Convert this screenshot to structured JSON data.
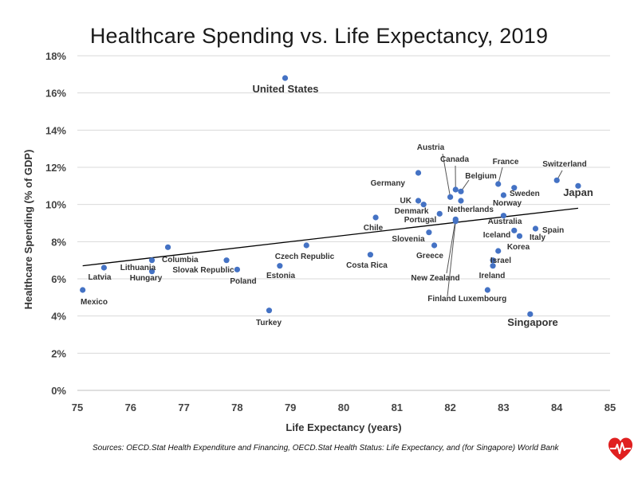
{
  "colors": {
    "point": "#4472c4",
    "trend": "#000000",
    "grid": "#d9d9d9",
    "logo": "#e02020"
  },
  "icons": {
    "logo": "heart-pulse-icon"
  },
  "source_note": "Sources: OECD.Stat Health Expenditure and Financing, OECD.Stat Health Status: Life Expectancy, and (for Singapore) World Bank",
  "chart_data": {
    "type": "scatter",
    "title": "Healthcare Spending vs. Life Expectancy, 2019",
    "xlabel": "Life Expectancy (years)",
    "ylabel": "Healthcare Spending (% of GDP)",
    "xlim": [
      75,
      85
    ],
    "ylim": [
      0,
      18
    ],
    "x_ticks": [
      "75",
      "76",
      "77",
      "78",
      "79",
      "80",
      "81",
      "82",
      "83",
      "84",
      "85"
    ],
    "y_ticks": [
      "0%",
      "2%",
      "4%",
      "6%",
      "8%",
      "10%",
      "12%",
      "14%",
      "16%",
      "18%"
    ],
    "grid": "horizontal",
    "trendline": {
      "x": [
        75.1,
        84.4
      ],
      "y": [
        6.7,
        9.8
      ]
    },
    "points": [
      {
        "label": "United States",
        "x": 78.9,
        "y": 16.8,
        "emphasis": true
      },
      {
        "label": "Mexico",
        "x": 75.1,
        "y": 5.4
      },
      {
        "label": "Latvia",
        "x": 75.5,
        "y": 6.6
      },
      {
        "label": "Lithuania",
        "x": 76.4,
        "y": 7.0
      },
      {
        "label": "Hungary",
        "x": 76.4,
        "y": 6.4
      },
      {
        "label": "Columbia",
        "x": 76.7,
        "y": 7.7
      },
      {
        "label": "Slovak Republic",
        "x": 77.8,
        "y": 7.0
      },
      {
        "label": "Poland",
        "x": 78.0,
        "y": 6.5
      },
      {
        "label": "Turkey",
        "x": 78.6,
        "y": 4.3
      },
      {
        "label": "Estonia",
        "x": 78.8,
        "y": 6.7
      },
      {
        "label": "Czech Republic",
        "x": 79.3,
        "y": 7.8
      },
      {
        "label": "Costa Rica",
        "x": 80.5,
        "y": 7.3
      },
      {
        "label": "Chile",
        "x": 80.6,
        "y": 9.3
      },
      {
        "label": "Germany",
        "x": 81.4,
        "y": 11.7
      },
      {
        "label": "UK",
        "x": 81.4,
        "y": 10.2
      },
      {
        "label": "Denmark",
        "x": 81.5,
        "y": 10.0
      },
      {
        "label": "Portugal",
        "x": 81.8,
        "y": 9.5
      },
      {
        "label": "Slovenia",
        "x": 81.6,
        "y": 8.5
      },
      {
        "label": "Greece",
        "x": 81.7,
        "y": 7.8
      },
      {
        "label": "Austria",
        "x": 82.0,
        "y": 10.4
      },
      {
        "label": "Canada",
        "x": 82.1,
        "y": 10.8
      },
      {
        "label": "Belgium",
        "x": 82.2,
        "y": 10.7
      },
      {
        "label": "Netherlands",
        "x": 82.2,
        "y": 10.2
      },
      {
        "label": "New Zealand",
        "x": 82.1,
        "y": 9.2
      },
      {
        "label": "Finland",
        "x": 82.1,
        "y": 9.1
      },
      {
        "label": "France",
        "x": 82.9,
        "y": 11.1
      },
      {
        "label": "Sweden",
        "x": 83.2,
        "y": 10.9
      },
      {
        "label": "Norway",
        "x": 83.0,
        "y": 10.5
      },
      {
        "label": "Australia",
        "x": 83.0,
        "y": 9.4
      },
      {
        "label": "Iceland",
        "x": 83.2,
        "y": 8.6
      },
      {
        "label": "Italy",
        "x": 83.3,
        "y": 8.3
      },
      {
        "label": "Korea",
        "x": 82.9,
        "y": 7.5
      },
      {
        "label": "Israel",
        "x": 82.8,
        "y": 7.0
      },
      {
        "label": "Ireland",
        "x": 82.8,
        "y": 6.7
      },
      {
        "label": "Luxembourg",
        "x": 82.7,
        "y": 5.4
      },
      {
        "label": "Spain",
        "x": 83.6,
        "y": 8.7
      },
      {
        "label": "Switzerland",
        "x": 84.0,
        "y": 11.3
      },
      {
        "label": "Japan",
        "x": 84.4,
        "y": 11.0,
        "emphasis": true
      },
      {
        "label": "Singapore",
        "x": 83.5,
        "y": 4.1,
        "emphasis": true
      }
    ]
  }
}
